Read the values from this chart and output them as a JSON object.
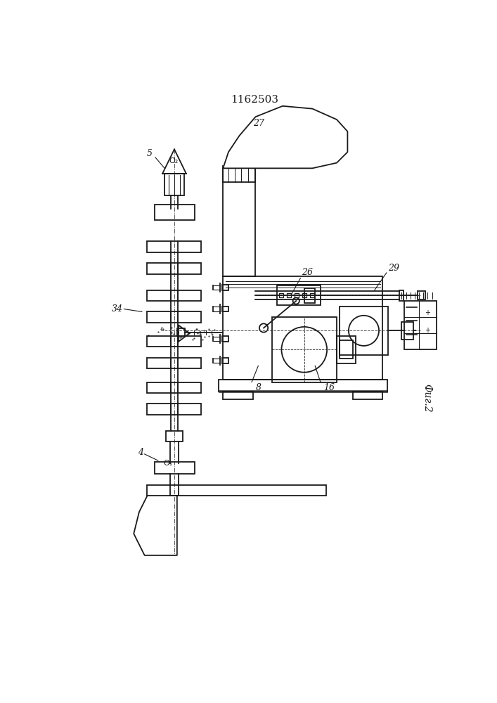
{
  "title": "1162503",
  "fig_label": "Фиг.2",
  "background_color": "#ffffff",
  "line_color": "#1a1a1a",
  "line_width": 1.3,
  "title_fontsize": 11,
  "label_fontsize": 9
}
